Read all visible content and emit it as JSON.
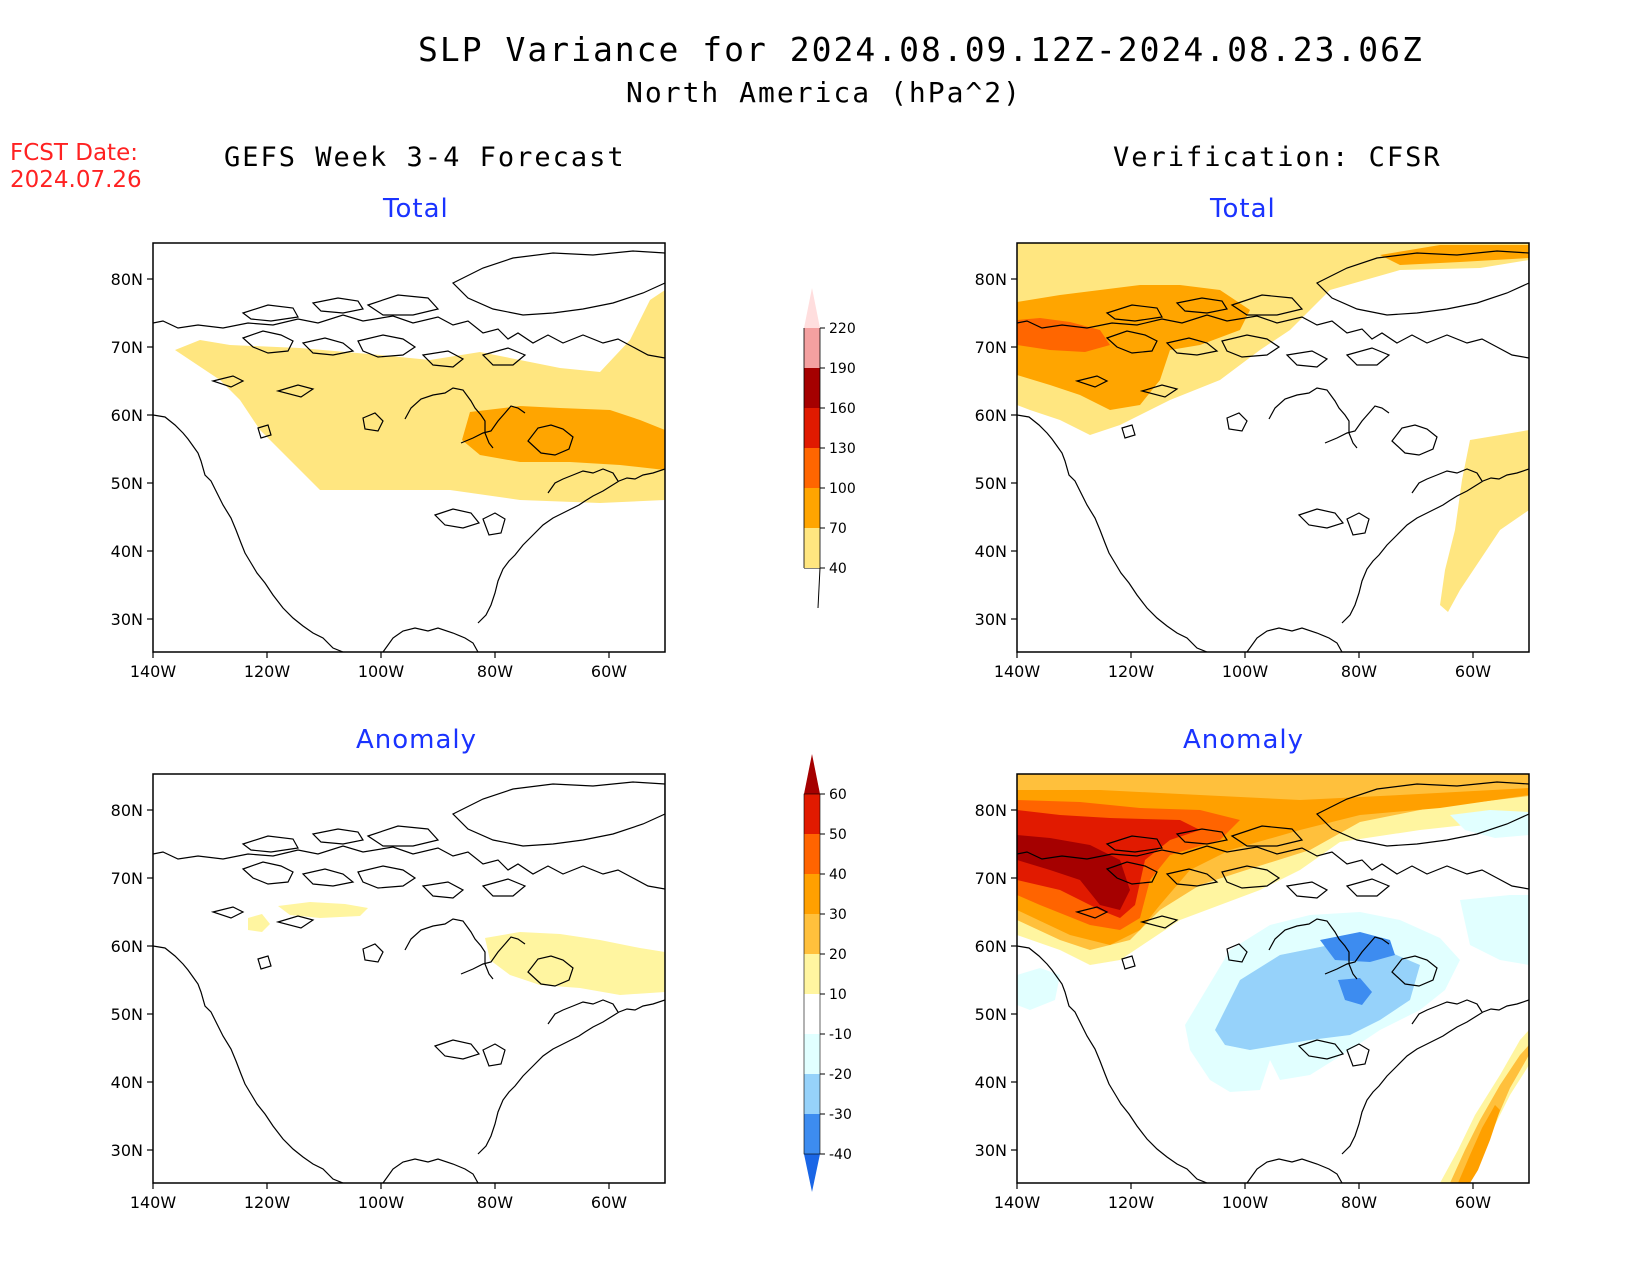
{
  "header": {
    "title": "SLP Variance for 2024.08.09.12Z-2024.08.23.06Z",
    "subtitle": "North America (hPa^2)",
    "fcst_line1": "FCST Date:",
    "fcst_line2": "2024.07.26"
  },
  "columns": {
    "left": "GEFS Week 3-4 Forecast",
    "right": "Verification: CFSR"
  },
  "panels": {
    "total_label": "Total",
    "anomaly_label": "Anomaly"
  },
  "axes": {
    "lat_ticks": [
      "80N",
      "70N",
      "60N",
      "50N",
      "40N",
      "30N"
    ],
    "lon_ticks": [
      "140W",
      "120W",
      "100W",
      "80W",
      "60W"
    ]
  },
  "colorbar_total": {
    "levels": [
      "40",
      "70",
      "100",
      "130",
      "160",
      "190",
      "220"
    ],
    "colors": [
      "#ffe680",
      "#ffa500",
      "#ff6600",
      "#e01a00",
      "#a50000",
      "#f4a0a0",
      "#ffdede"
    ]
  },
  "colorbar_anomaly": {
    "levels": [
      "-40",
      "-30",
      "-20",
      "-10",
      "10",
      "20",
      "30",
      "40",
      "50",
      "60"
    ],
    "colors": [
      "#1a66e6",
      "#3d8cf0",
      "#96d2fa",
      "#e1ffff",
      "#ffffff",
      "#fff5a0",
      "#ffc03c",
      "#ffa000",
      "#ff6400",
      "#e11a00",
      "#a50000"
    ]
  }
}
